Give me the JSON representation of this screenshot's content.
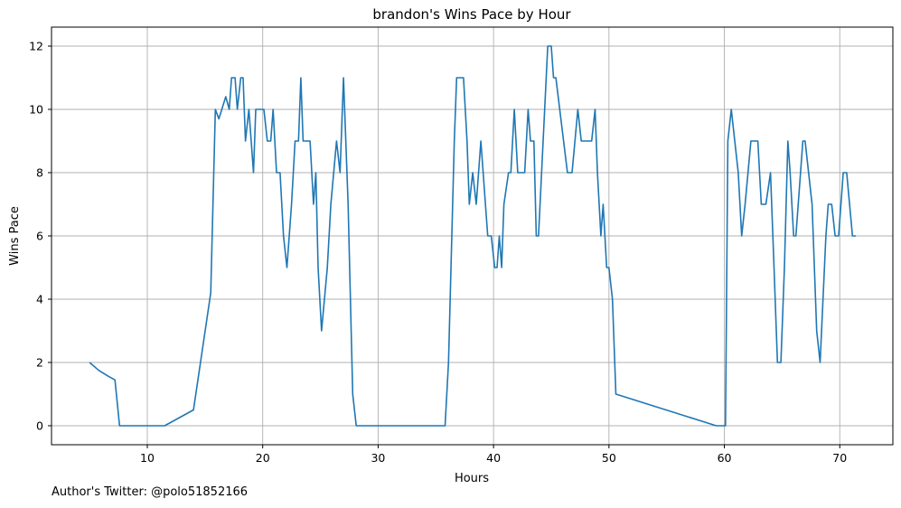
{
  "chart_data": {
    "type": "line",
    "title": "brandon's Wins Pace by Hour",
    "xlabel": "Hours",
    "ylabel": "Wins Pace",
    "xlim": [
      1.7,
      74.6
    ],
    "ylim": [
      -0.6,
      12.6
    ],
    "xticks": [
      10,
      20,
      30,
      40,
      50,
      60,
      70
    ],
    "yticks": [
      0,
      2,
      4,
      6,
      8,
      10,
      12
    ],
    "grid": true,
    "line_color": "#1f77b4",
    "series": [
      {
        "x": [
          5.0,
          5.8,
          6.6,
          7.2,
          7.6,
          11.5,
          14.0,
          15.5,
          15.9,
          16.2,
          16.8,
          17.1,
          17.3,
          17.6,
          17.8,
          18.1,
          18.3,
          18.5,
          18.8,
          19.2,
          19.4,
          20.1,
          20.4,
          20.7,
          20.9,
          21.2,
          21.5,
          21.8,
          22.1,
          22.5,
          22.8,
          23.1,
          23.3,
          23.5,
          24.1,
          24.4,
          24.6,
          24.8,
          25.1,
          25.6,
          25.9,
          26.4,
          26.7,
          27.0,
          27.4,
          27.8,
          28.1,
          29.0,
          35.8,
          36.1,
          36.6,
          36.8,
          37.4,
          37.7,
          37.9,
          38.2,
          38.5,
          38.9,
          39.5,
          39.8,
          40.1,
          40.3,
          40.5,
          40.7,
          40.9,
          41.3,
          41.5,
          41.8,
          42.1,
          42.7,
          43.0,
          43.2,
          43.5,
          43.7,
          43.9,
          44.3,
          44.7,
          45.0,
          45.2,
          45.4,
          46.4,
          46.8,
          47.3,
          47.6,
          48.5,
          48.8,
          49.0,
          49.3,
          49.5,
          49.8,
          50.0,
          50.3,
          50.6,
          59.3,
          60.1,
          60.3,
          60.6,
          61.2,
          61.5,
          61.8,
          62.3,
          62.5,
          62.9,
          63.2,
          63.4,
          63.6,
          64.0,
          64.3,
          64.6,
          64.9,
          65.2,
          65.5,
          65.7,
          66.0,
          66.2,
          66.8,
          67.0,
          67.6,
          68.0,
          68.3,
          68.8,
          69.0,
          69.3,
          69.6,
          69.9,
          70.3,
          70.6,
          71.1,
          71.4
        ],
        "y": [
          2,
          1.75,
          1.57,
          1.45,
          0,
          0,
          0.5,
          4.2,
          10,
          9.7,
          10.4,
          10,
          11,
          11,
          10,
          11,
          11,
          9,
          10,
          8,
          10,
          10,
          9,
          9,
          10,
          8,
          8,
          6,
          5,
          7,
          9,
          9,
          11,
          9,
          9,
          7,
          8,
          5,
          3,
          5,
          7,
          9,
          8,
          11,
          7,
          1,
          0,
          0,
          0,
          2,
          9,
          11,
          11,
          9,
          7,
          8,
          7,
          9,
          6,
          6,
          5,
          5,
          6,
          5,
          7,
          8,
          8,
          10,
          8,
          8,
          10,
          9,
          9,
          6,
          6,
          9,
          12,
          12,
          11,
          11,
          8,
          8,
          10,
          9,
          9,
          10,
          8,
          6,
          7,
          5,
          5,
          4,
          1,
          0,
          0,
          9,
          10,
          8,
          6,
          7,
          9,
          9,
          9,
          7,
          7,
          7,
          8,
          5,
          2,
          2,
          5,
          9,
          8,
          6,
          6,
          9,
          9,
          7,
          3,
          2,
          6,
          7,
          7,
          6,
          6,
          8,
          8,
          6,
          6
        ]
      }
    ]
  },
  "footer": "Author's Twitter: @polo51852166"
}
